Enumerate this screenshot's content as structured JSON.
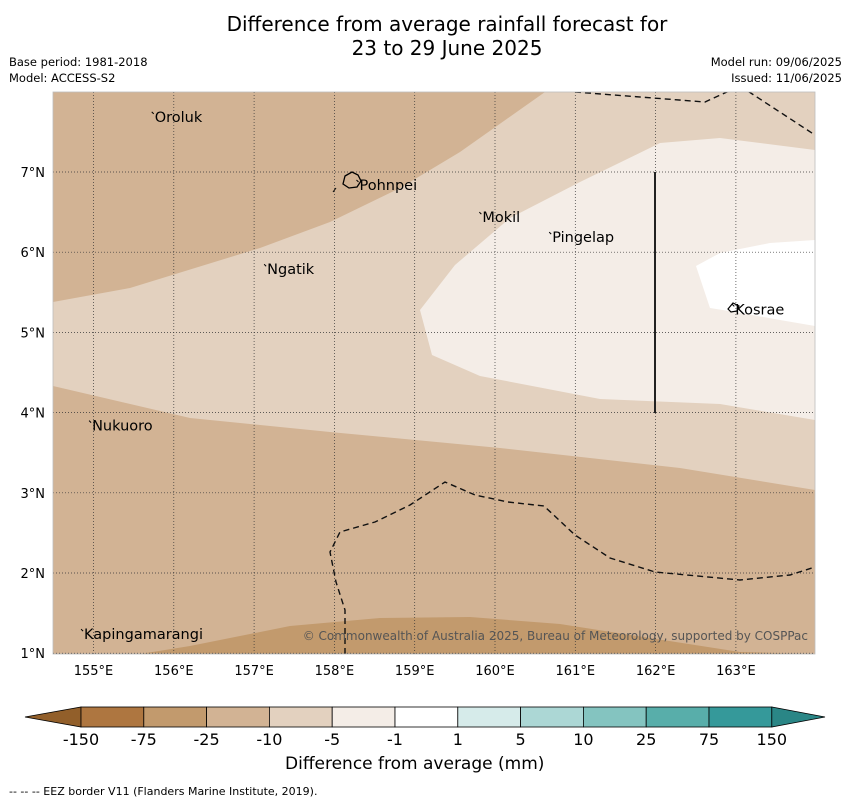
{
  "title": {
    "line1": "Difference from average rainfall forecast for",
    "line2": "23 to 29 June 2025"
  },
  "meta_left": {
    "base_period": "Base period: 1981-2018",
    "model": "Model: ACCESS-S2"
  },
  "meta_right": {
    "model_run": "Model run: 09/06/2025",
    "issued": "Issued: 11/06/2025"
  },
  "map": {
    "extent": {
      "lon_min": 154.5,
      "lon_max": 164.0,
      "lat_min": 1.0,
      "lat_max": 8.0
    },
    "lon_ticks": [
      {
        "value": 155,
        "label": "155°E"
      },
      {
        "value": 156,
        "label": "156°E"
      },
      {
        "value": 157,
        "label": "157°E"
      },
      {
        "value": 158,
        "label": "158°E"
      },
      {
        "value": 159,
        "label": "159°E"
      },
      {
        "value": 160,
        "label": "160°E"
      },
      {
        "value": 161,
        "label": "161°E"
      },
      {
        "value": 162,
        "label": "162°E"
      },
      {
        "value": 163,
        "label": "163°E"
      }
    ],
    "lat_ticks": [
      {
        "value": 7,
        "label": "7°N"
      },
      {
        "value": 6,
        "label": "6°N"
      },
      {
        "value": 5,
        "label": "5°N"
      },
      {
        "value": 4,
        "label": "4°N"
      },
      {
        "value": 3,
        "label": "3°N"
      },
      {
        "value": 2,
        "label": "2°N"
      },
      {
        "value": 1,
        "label": "1°N"
      }
    ],
    "places": [
      {
        "name": "Oroluk",
        "lon": 155.75,
        "lat": 7.7
      },
      {
        "name": "Pohnpei",
        "lon": 158.3,
        "lat": 6.85
      },
      {
        "name": "Mokil",
        "lon": 159.83,
        "lat": 6.45
      },
      {
        "name": "Pingelap",
        "lon": 160.7,
        "lat": 6.2
      },
      {
        "name": "Ngatik",
        "lon": 157.15,
        "lat": 5.8
      },
      {
        "name": "Kosrae",
        "lon": 162.98,
        "lat": 5.3
      },
      {
        "name": "Nukuoro",
        "lon": 154.97,
        "lat": 3.85
      },
      {
        "name": "Kapingamarangi",
        "lon": 154.87,
        "lat": 1.25
      }
    ],
    "copyright": "© Commonwealth of Australia 2025, Bureau of Meteorology, supported by COSPPac",
    "colors": {
      "band_-25_-10": "#d2b394",
      "band_-10_-5": "#e3d1bf",
      "band_-5_-1": "#f4ede7",
      "band_-1_1": "#ffffff",
      "band_-75_-25": "#c29a6d"
    }
  },
  "colorbar": {
    "title": "Difference from average (mm)",
    "labels": [
      "-150",
      "-75",
      "-25",
      "-10",
      "-5",
      "-1",
      "1",
      "5",
      "10",
      "25",
      "75",
      "150"
    ],
    "colors": [
      "#ae7640",
      "#c29a6d",
      "#d2b394",
      "#e3d1bf",
      "#f4ede7",
      "#ffffff",
      "#d6ebea",
      "#acd7d5",
      "#84c4c0",
      "#58aeaa",
      "#35999a"
    ],
    "extend_low_color": "#925f2a",
    "extend_high_color": "#2a8686"
  },
  "footer": "--  --  -- EEZ border V11 (Flanders Marine Institute, 2019)."
}
